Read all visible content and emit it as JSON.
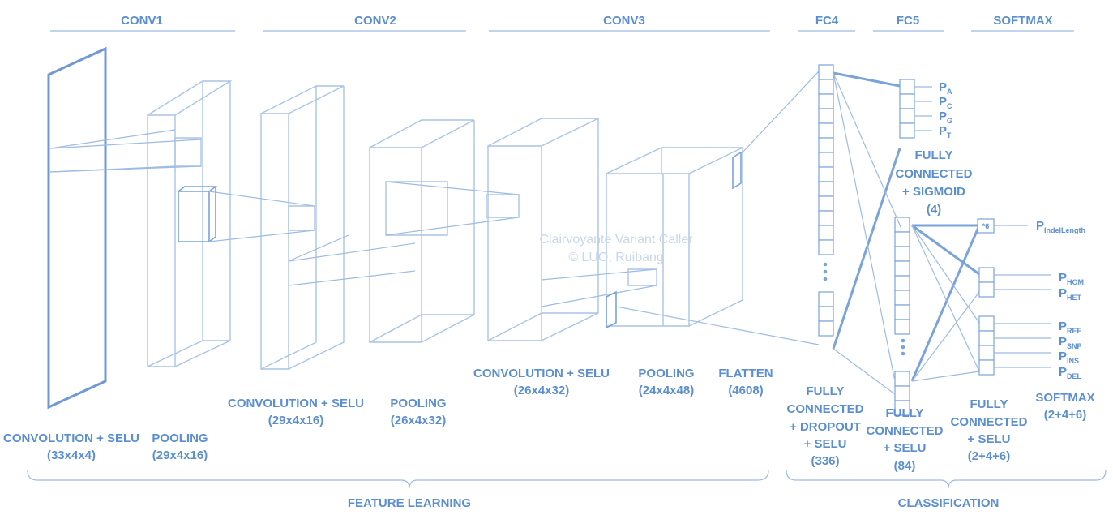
{
  "headers": {
    "conv1": "CONV1",
    "conv2": "CONV2",
    "conv3": "CONV3",
    "fc4": "FC4",
    "fc5": "FC5",
    "softmax": "SOFTMAX"
  },
  "layers": {
    "conv1_conv": {
      "line1": "CONVOLUTION + SELU",
      "dims": "(33x4x4)"
    },
    "conv1_pool": {
      "line1": "POOLING",
      "dims": "(29x4x16)"
    },
    "conv2_conv": {
      "line1": "CONVOLUTION + SELU",
      "dims": "(29x4x16)"
    },
    "conv2_pool": {
      "line1": "POOLING",
      "dims": "(26x4x32)"
    },
    "conv3_conv": {
      "line1": "CONVOLUTION + SELU",
      "dims": "(26x4x32)"
    },
    "conv3_pool": {
      "line1": "POOLING",
      "dims": "(24x4x48)"
    },
    "flatten": {
      "line1": "FLATTEN",
      "dims": "(4608)"
    },
    "fc4": {
      "line1": "FULLY",
      "line2": "CONNECTED",
      "line3": "+ DROPOUT",
      "line4": "+ SELU",
      "dims": "(336)"
    },
    "fc5": {
      "line1": "FULLY",
      "line2": "CONNECTED",
      "line3": "+ SELU",
      "dims": "(84)"
    },
    "sigmoid": {
      "line1": "FULLY",
      "line2": "CONNECTED",
      "line3": "+ SIGMOID",
      "dims": "(4)"
    },
    "fc_selu": {
      "line1": "FULLY",
      "line2": "CONNECTED",
      "line3": "+ SELU",
      "dims": "(2+4+6)"
    },
    "softmax": {
      "line1": "SOFTMAX",
      "dims": "(2+4+6)"
    }
  },
  "outputs": {
    "base": [
      {
        "p": "P",
        "sub": "A"
      },
      {
        "p": "P",
        "sub": "C"
      },
      {
        "p": "P",
        "sub": "G"
      },
      {
        "p": "P",
        "sub": "T"
      }
    ],
    "zygosity": [
      {
        "p": "P",
        "sub": "HOM"
      },
      {
        "p": "P",
        "sub": "HET"
      }
    ],
    "variant": [
      {
        "p": "P",
        "sub": "REF"
      },
      {
        "p": "P",
        "sub": "SNP"
      },
      {
        "p": "P",
        "sub": "INS"
      },
      {
        "p": "P",
        "sub": "DEL"
      }
    ],
    "indel": {
      "p": "P",
      "sub": "IndelLength"
    },
    "multiplier": "*6"
  },
  "sections": {
    "feature_learning": "FEATURE LEARNING",
    "classification": "CLASSIFICATION"
  },
  "watermark": {
    "line1": "Clairvoyante Variant Caller",
    "line2": "© LUO, Ruibang"
  }
}
